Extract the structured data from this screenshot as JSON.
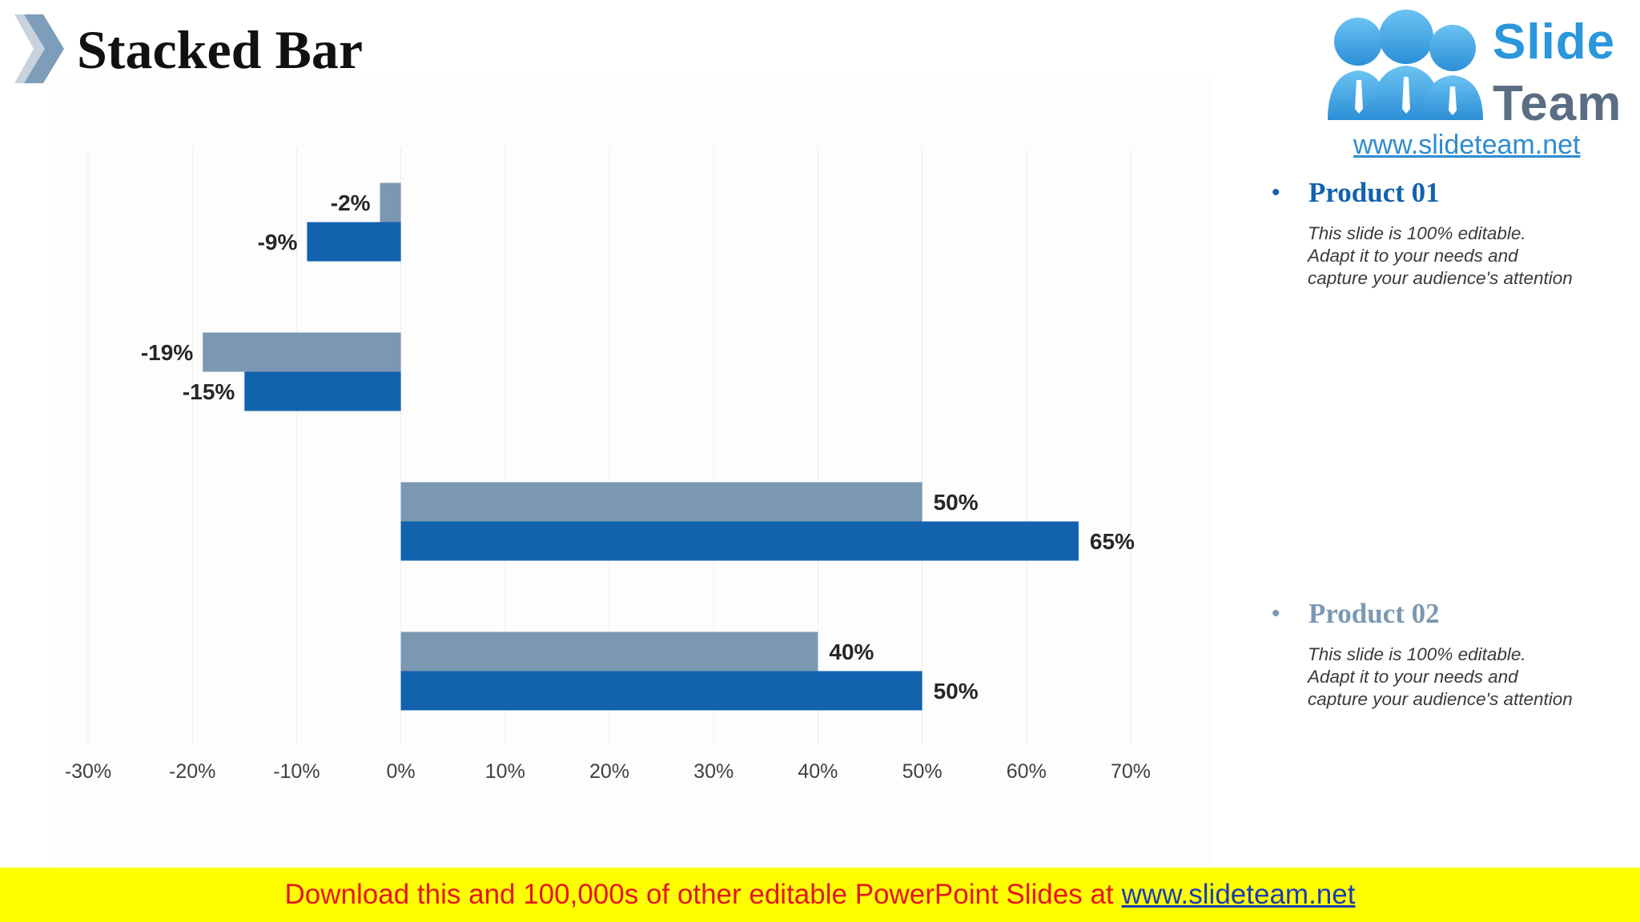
{
  "header": {
    "title": "Stacked Bar"
  },
  "logo": {
    "word_1": "Slide",
    "word_2": "Team",
    "url": "www.slideteam.net"
  },
  "colors": {
    "product_01": "#1262ad",
    "product_02": "#7b98b2",
    "banner_bg": "#ffff00",
    "banner_text": "#e4161c",
    "banner_link": "#1a3cb4"
  },
  "legend": [
    {
      "title": "Product 01",
      "color": "#1262ad",
      "lines": [
        "This slide is 100% editable.",
        "Adapt it to your needs and",
        "capture your audience's attention"
      ]
    },
    {
      "title": "Product 02",
      "color": "#7b98b2",
      "lines": [
        "This slide is 100% editable.",
        "Adapt it to your needs and",
        "capture your audience's attention"
      ]
    }
  ],
  "chart_data": {
    "type": "bar",
    "orientation": "horizontal",
    "xlim": [
      -30,
      70
    ],
    "x_ticks": [
      -30,
      -20,
      -10,
      0,
      10,
      20,
      30,
      40,
      50,
      60,
      70
    ],
    "tick_suffix": "%",
    "grid": true,
    "series": [
      {
        "name": "Product 02",
        "color": "#7b98b2",
        "values": [
          -2,
          -19,
          50,
          40
        ]
      },
      {
        "name": "Product 01",
        "color": "#1262ad",
        "values": [
          -9,
          -15,
          65,
          50
        ]
      }
    ]
  },
  "banner": {
    "text": "Download this and 100,000s of other editable PowerPoint Slides at",
    "link": "www.slideteam.net"
  }
}
